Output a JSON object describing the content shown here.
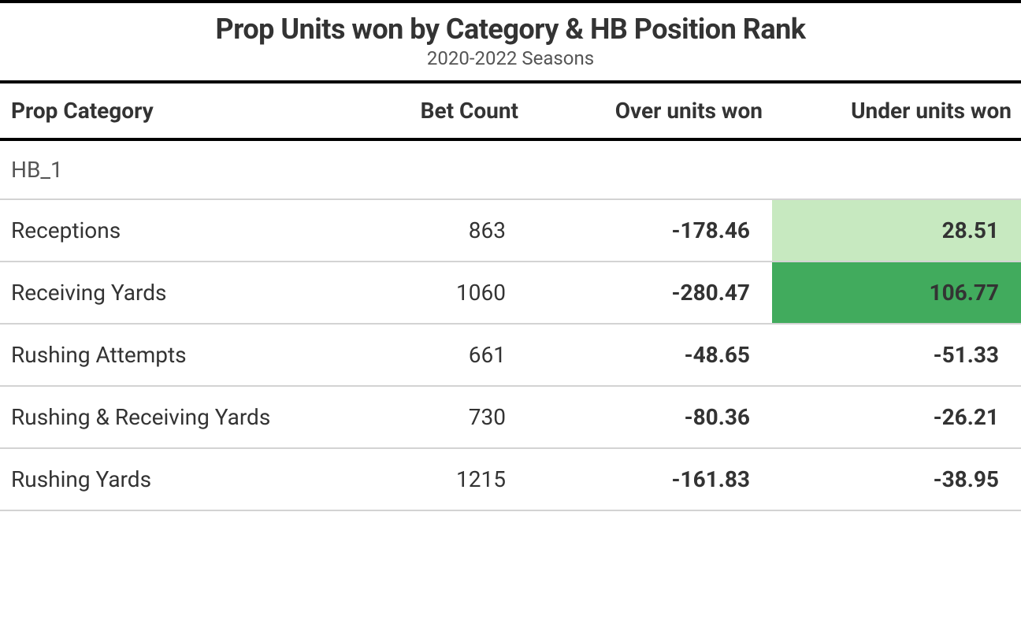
{
  "table": {
    "title": "Prop Units won by Category & HB Position Rank",
    "subtitle": "2020-2022 Seasons",
    "columns": [
      {
        "key": "category",
        "label": "Prop Category",
        "align": "left"
      },
      {
        "key": "bet_count",
        "label": "Bet Count",
        "align": "right"
      },
      {
        "key": "over_units",
        "label": "Over units won",
        "align": "right"
      },
      {
        "key": "under_units",
        "label": "Under units won",
        "align": "right"
      }
    ],
    "group_label": "HB_1",
    "rows": [
      {
        "category": "Receptions",
        "bet_count": "863",
        "over_units": "-178.46",
        "under_units": "28.51",
        "under_bg": "#c7e9c0",
        "under_color": "#333333"
      },
      {
        "category": "Receiving Yards",
        "bet_count": "1060",
        "over_units": "-280.47",
        "under_units": "106.77",
        "under_bg": "#41ab5d",
        "under_color": "#333333"
      },
      {
        "category": "Rushing Attempts",
        "bet_count": "661",
        "over_units": "-48.65",
        "under_units": "-51.33",
        "under_bg": "#ffffff",
        "under_color": "#333333"
      },
      {
        "category": "Rushing & Receiving Yards",
        "bet_count": "730",
        "over_units": "-80.36",
        "under_units": "-26.21",
        "under_bg": "#ffffff",
        "under_color": "#333333"
      },
      {
        "category": "Rushing Yards",
        "bet_count": "1215",
        "over_units": "-161.83",
        "under_units": "-38.95",
        "under_bg": "#ffffff",
        "under_color": "#333333"
      }
    ],
    "styling": {
      "border_color": "#000000",
      "row_border_color": "#d3d3d3",
      "title_fontsize": 36,
      "subtitle_fontsize": 24,
      "header_fontsize": 28,
      "cell_fontsize": 28,
      "background_color": "#ffffff",
      "text_color": "#333333",
      "subtitle_color": "#555555"
    }
  }
}
